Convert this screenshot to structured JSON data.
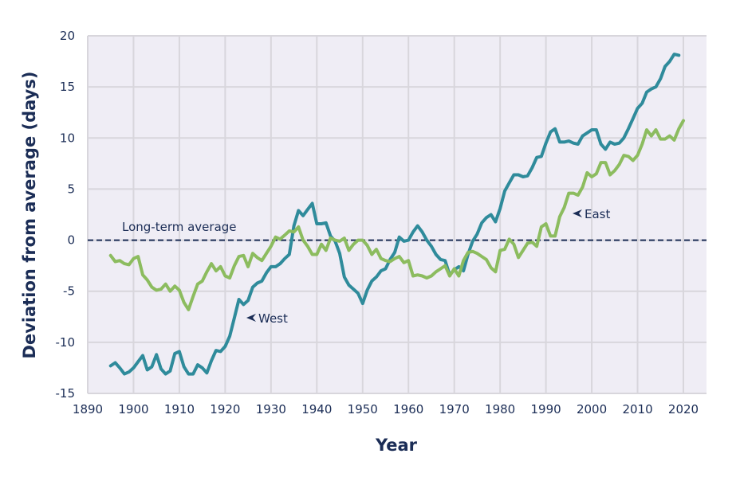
{
  "chart_data": {
    "type": "line",
    "title": "",
    "xlabel": "Year",
    "ylabel": "Deviation from average (days)",
    "xlim": [
      1890,
      2025
    ],
    "ylim": [
      -15,
      20
    ],
    "xticks": [
      1890,
      1900,
      1910,
      1920,
      1930,
      1940,
      1950,
      1960,
      1970,
      1980,
      1990,
      2000,
      2010,
      2020
    ],
    "yticks": [
      -15,
      -10,
      -5,
      0,
      5,
      10,
      15,
      20
    ],
    "grid": true,
    "reference_line": {
      "value": 0,
      "label": "Long-term average"
    },
    "x_start": 1895,
    "series": [
      {
        "name": "West",
        "color": "#2f8b9b",
        "values": [
          -12.3,
          -12.0,
          -12.5,
          -13.1,
          -12.9,
          -12.5,
          -11.9,
          -11.3,
          -12.7,
          -12.4,
          -11.2,
          -12.6,
          -13.1,
          -12.8,
          -11.1,
          -10.9,
          -12.4,
          -13.1,
          -13.1,
          -12.2,
          -12.5,
          -13.0,
          -11.8,
          -10.8,
          -10.9,
          -10.4,
          -9.4,
          -7.6,
          -5.8,
          -6.3,
          -5.9,
          -4.6,
          -4.2,
          -4.0,
          -3.2,
          -2.6,
          -2.6,
          -2.3,
          -1.8,
          -1.4,
          1.4,
          2.9,
          2.4,
          3.0,
          3.6,
          1.6,
          1.6,
          1.7,
          0.4,
          -0.1,
          -1.3,
          -3.6,
          -4.4,
          -4.8,
          -5.2,
          -6.2,
          -4.9,
          -4.0,
          -3.6,
          -3.0,
          -2.8,
          -1.9,
          -1.2,
          0.3,
          -0.1,
          0.0,
          0.8,
          1.4,
          0.8,
          0.0,
          -0.6,
          -1.4,
          -1.9,
          -2.0,
          -3.4,
          -2.9,
          -2.6,
          -3.0,
          -1.4,
          -0.1,
          0.6,
          1.7,
          2.2,
          2.5,
          1.8,
          3.1,
          4.8,
          5.6,
          6.4,
          6.4,
          6.2,
          6.3,
          7.1,
          8.1,
          8.2,
          9.5,
          10.6,
          10.9,
          9.6,
          9.6,
          9.7,
          9.5,
          9.4,
          10.2,
          10.5,
          10.8,
          10.8,
          9.4,
          8.9,
          9.6,
          9.4,
          9.5,
          10.0,
          10.9,
          11.9,
          12.9,
          13.4,
          14.5,
          14.8,
          15.0,
          15.8,
          17.0,
          17.5,
          18.2,
          18.1
        ]
      },
      {
        "name": "East",
        "color": "#8cbc5f",
        "values": [
          -1.5,
          -2.1,
          -2.0,
          -2.3,
          -2.4,
          -1.8,
          -1.6,
          -3.4,
          -3.9,
          -4.6,
          -4.9,
          -4.8,
          -4.3,
          -5.0,
          -4.5,
          -4.9,
          -6.1,
          -6.8,
          -5.5,
          -4.3,
          -4.0,
          -3.1,
          -2.3,
          -3.0,
          -2.6,
          -3.5,
          -3.7,
          -2.5,
          -1.6,
          -1.5,
          -2.6,
          -1.3,
          -1.7,
          -2.0,
          -1.3,
          -0.6,
          0.3,
          0.1,
          0.5,
          0.9,
          0.8,
          1.3,
          0.0,
          -0.6,
          -1.4,
          -1.4,
          -0.4,
          -1.0,
          0.2,
          0.0,
          -0.1,
          0.2,
          -1.0,
          -0.4,
          0.0,
          0.0,
          -0.5,
          -1.4,
          -0.9,
          -1.8,
          -2.0,
          -2.1,
          -1.8,
          -1.6,
          -2.2,
          -2.0,
          -3.5,
          -3.4,
          -3.5,
          -3.7,
          -3.5,
          -3.1,
          -2.8,
          -2.5,
          -3.5,
          -2.8,
          -3.5,
          -2.0,
          -1.2,
          -1.1,
          -1.3,
          -1.6,
          -1.9,
          -2.7,
          -3.1,
          -1.0,
          -0.9,
          0.1,
          -0.4,
          -1.7,
          -1.0,
          -0.3,
          -0.2,
          -0.6,
          1.3,
          1.6,
          0.4,
          0.4,
          2.3,
          3.2,
          4.6,
          4.6,
          4.4,
          5.2,
          6.6,
          6.2,
          6.5,
          7.6,
          7.6,
          6.4,
          6.8,
          7.4,
          8.3,
          8.2,
          7.8,
          8.3,
          9.4,
          10.8,
          10.2,
          10.8,
          9.9,
          9.9,
          10.2,
          9.8,
          10.9,
          11.7
        ]
      }
    ]
  }
}
